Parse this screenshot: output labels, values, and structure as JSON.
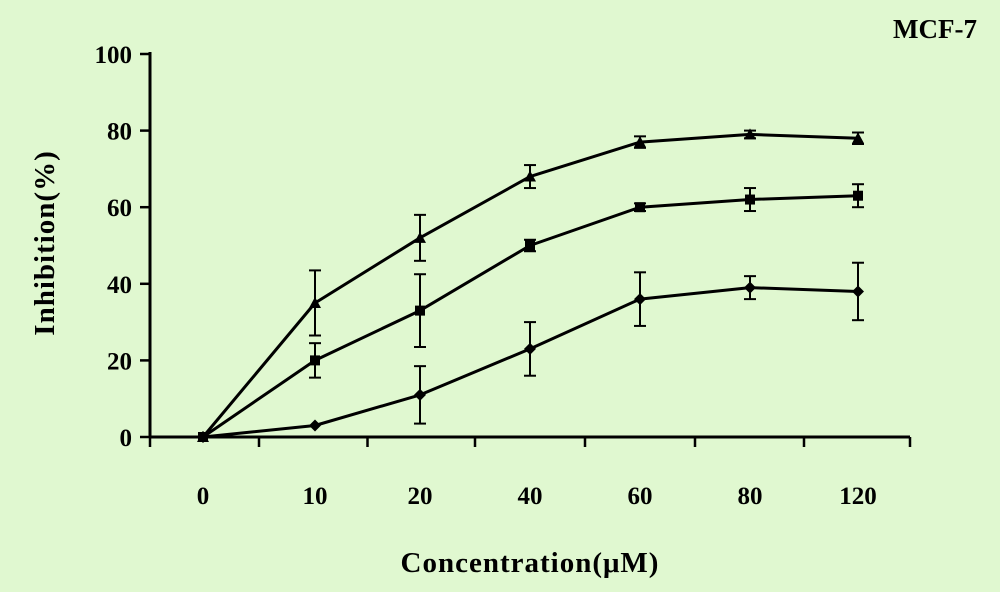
{
  "chart_data": {
    "type": "line",
    "title": "MCF-7",
    "xlabel": "Concentration(μM)",
    "ylabel": "Inhibition(%)",
    "categories": [
      "0",
      "10",
      "20",
      "40",
      "60",
      "80",
      "120"
    ],
    "ylim": [
      0,
      100
    ],
    "yticks": [
      0,
      20,
      40,
      60,
      80,
      100
    ],
    "grid": false,
    "legend": "none",
    "colors": {
      "background": "#e0f8d0",
      "line": "#000000"
    },
    "series": [
      {
        "marker": "triangle",
        "values": [
          0,
          35,
          52,
          68,
          77,
          79,
          78
        ],
        "errors": [
          0,
          8.5,
          6,
          3,
          1.5,
          1,
          1.5
        ]
      },
      {
        "marker": "square",
        "values": [
          0,
          20,
          33,
          50,
          60,
          62,
          63
        ],
        "errors": [
          0,
          4.5,
          9.5,
          1.5,
          1,
          3,
          3
        ]
      },
      {
        "marker": "diamond",
        "values": [
          0,
          3,
          11,
          23,
          36,
          39,
          38
        ],
        "errors": [
          0,
          0,
          7.5,
          7,
          7,
          3,
          7.5
        ]
      }
    ]
  }
}
